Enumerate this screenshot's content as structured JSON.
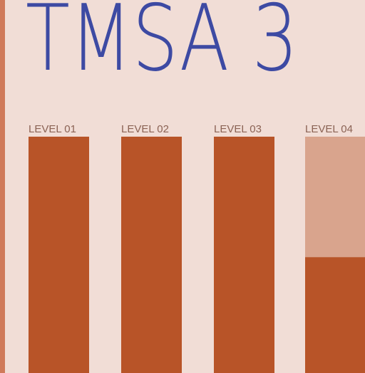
{
  "header": {
    "title": "TMSA 3"
  },
  "levels": [
    {
      "label": "LEVEL 01",
      "progress": 1
    },
    {
      "label": "LEVEL 02",
      "progress": 1
    },
    {
      "label": "LEVEL 03",
      "progress": 1
    },
    {
      "label": "LEVEL 04",
      "progress": 0.49
    }
  ]
}
